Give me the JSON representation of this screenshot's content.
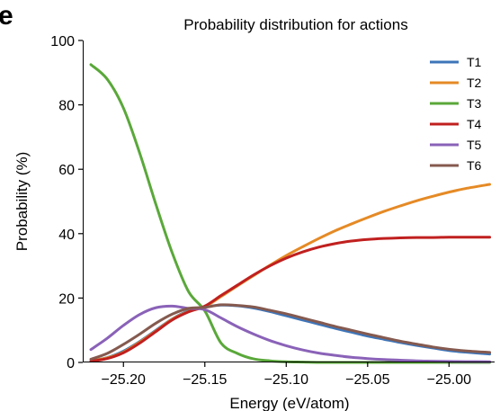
{
  "panel_label": "e",
  "chart_data": {
    "type": "line",
    "title": "Probability distribution for actions",
    "xlabel": "Energy (eV/atom)",
    "ylabel": "Probability (%)",
    "xlim": [
      -25.225,
      -24.972
    ],
    "ylim": [
      0,
      100
    ],
    "xticks": [
      -25.2,
      -25.15,
      -25.1,
      -25.05,
      -25.0
    ],
    "xtick_labels": [
      "−25.20",
      "−25.15",
      "−25.10",
      "−25.05",
      "−25.00"
    ],
    "yticks": [
      0,
      20,
      40,
      60,
      80,
      100
    ],
    "ytick_labels": [
      "0",
      "20",
      "40",
      "60",
      "80",
      "100"
    ],
    "grid": false,
    "legend_position": "top-right",
    "x": [
      -25.22,
      -25.21,
      -25.2,
      -25.19,
      -25.18,
      -25.17,
      -25.16,
      -25.15,
      -25.14,
      -25.13,
      -25.12,
      -25.11,
      -25.1,
      -25.09,
      -25.08,
      -25.07,
      -25.06,
      -25.05,
      -25.04,
      -25.03,
      -25.02,
      -25.01,
      -25.0,
      -24.99,
      -24.975
    ],
    "series": [
      {
        "name": "T1",
        "color": "#3d75b9",
        "values": [
          0.5,
          1.5,
          3.5,
          6.5,
          10,
          13.5,
          16,
          17.2,
          17.8,
          17.6,
          16.9,
          15.8,
          14.5,
          13.2,
          11.9,
          10.6,
          9.4,
          8.2,
          7.2,
          6.2,
          5.3,
          4.5,
          3.7,
          3.2,
          2.6
        ]
      },
      {
        "name": "T2",
        "color": "#e58a25",
        "values": [
          0.5,
          1.4,
          3.2,
          6.3,
          9.8,
          13.4,
          15.8,
          17.3,
          20.5,
          23.8,
          27,
          30.2,
          33.2,
          35.9,
          38.5,
          40.9,
          43,
          45,
          46.9,
          48.6,
          50.2,
          51.6,
          52.9,
          54,
          55.3
        ]
      },
      {
        "name": "T3",
        "color": "#5aa83a",
        "values": [
          92.5,
          88,
          79,
          65,
          49,
          34,
          22,
          16,
          6,
          2.8,
          1.1,
          0.5,
          0.2,
          0.1,
          0,
          0,
          0,
          0,
          0,
          0,
          0,
          0,
          0,
          0,
          0
        ]
      },
      {
        "name": "T4",
        "color": "#c0201f",
        "values": [
          0.4,
          1.2,
          3,
          6,
          9.6,
          13.2,
          15.7,
          17.5,
          20.8,
          24,
          27.2,
          30,
          32.4,
          34.3,
          35.8,
          36.9,
          37.7,
          38.2,
          38.5,
          38.7,
          38.8,
          38.8,
          38.9,
          38.9,
          38.9
        ]
      },
      {
        "name": "T5",
        "color": "#8a62b8",
        "values": [
          4,
          7.5,
          11.5,
          14.9,
          17,
          17.5,
          16.8,
          16.4,
          13.8,
          11.1,
          8.8,
          6.8,
          5.2,
          3.9,
          2.9,
          2.2,
          1.6,
          1.2,
          0.9,
          0.7,
          0.5,
          0.4,
          0.3,
          0.25,
          0.2
        ]
      },
      {
        "name": "T6",
        "color": "#855a4f",
        "values": [
          1,
          2.8,
          5.6,
          8.8,
          12.2,
          15,
          16.8,
          17.1,
          17.9,
          17.7,
          17.2,
          16.2,
          15.1,
          13.8,
          12.5,
          11.2,
          10,
          8.8,
          7.7,
          6.6,
          5.7,
          4.8,
          4.1,
          3.6,
          3.1
        ]
      }
    ]
  }
}
